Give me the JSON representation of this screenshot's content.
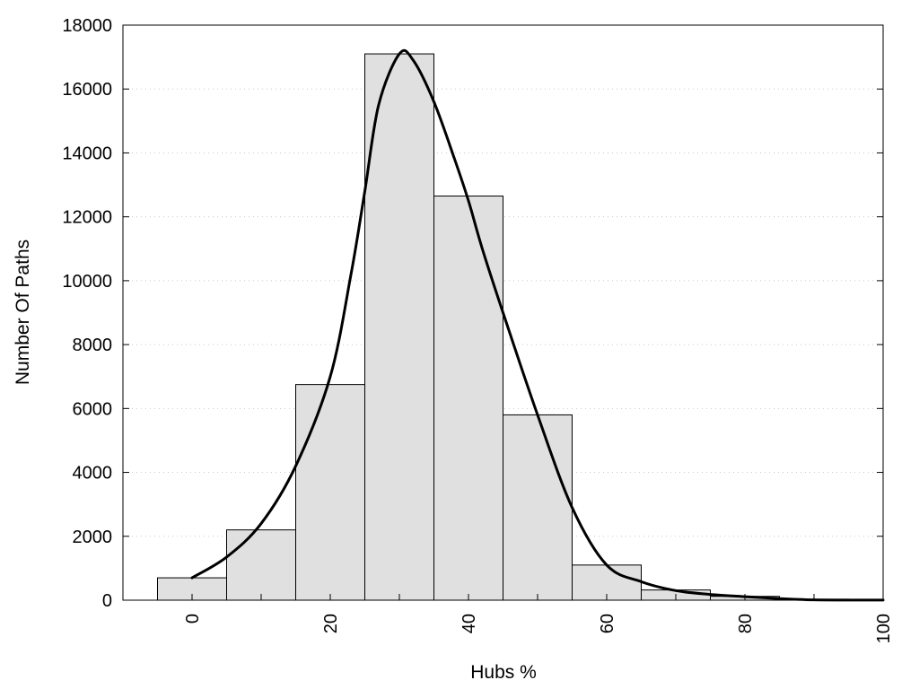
{
  "chart_data": {
    "type": "bar",
    "title": "",
    "xlabel": "Hubs %",
    "ylabel": "Number Of Paths",
    "xlim": [
      -10,
      100
    ],
    "ylim": [
      0,
      18000
    ],
    "xticks": [
      0,
      20,
      40,
      60,
      80,
      100
    ],
    "yticks": [
      0,
      2000,
      4000,
      6000,
      8000,
      10000,
      12000,
      14000,
      16000,
      18000
    ],
    "grid": "horizontal dotted",
    "bin_width": 10,
    "bins": [
      {
        "center": 0,
        "value": 700
      },
      {
        "center": 10,
        "value": 2200
      },
      {
        "center": 20,
        "value": 6750
      },
      {
        "center": 30,
        "value": 17100
      },
      {
        "center": 40,
        "value": 12650
      },
      {
        "center": 50,
        "value": 5800
      },
      {
        "center": 60,
        "value": 1100
      },
      {
        "center": 70,
        "value": 320
      },
      {
        "center": 80,
        "value": 120
      },
      {
        "center": 90,
        "value": 30
      },
      {
        "center": 100,
        "value": 10
      }
    ],
    "curve": [
      {
        "x": 0,
        "y": 700
      },
      {
        "x": 5,
        "y": 1350
      },
      {
        "x": 10,
        "y": 2400
      },
      {
        "x": 15,
        "y": 4200
      },
      {
        "x": 20,
        "y": 7000
      },
      {
        "x": 23,
        "y": 10200
      },
      {
        "x": 25,
        "y": 12800
      },
      {
        "x": 27,
        "y": 15500
      },
      {
        "x": 30,
        "y": 17100
      },
      {
        "x": 32,
        "y": 16900
      },
      {
        "x": 35,
        "y": 15600
      },
      {
        "x": 38,
        "y": 13800
      },
      {
        "x": 40,
        "y": 12500
      },
      {
        "x": 42,
        "y": 11000
      },
      {
        "x": 45,
        "y": 9000
      },
      {
        "x": 50,
        "y": 5800
      },
      {
        "x": 55,
        "y": 2900
      },
      {
        "x": 60,
        "y": 1100
      },
      {
        "x": 65,
        "y": 580
      },
      {
        "x": 70,
        "y": 300
      },
      {
        "x": 75,
        "y": 180
      },
      {
        "x": 80,
        "y": 110
      },
      {
        "x": 85,
        "y": 50
      },
      {
        "x": 90,
        "y": 10
      },
      {
        "x": 95,
        "y": 5
      },
      {
        "x": 100,
        "y": 5
      }
    ]
  }
}
